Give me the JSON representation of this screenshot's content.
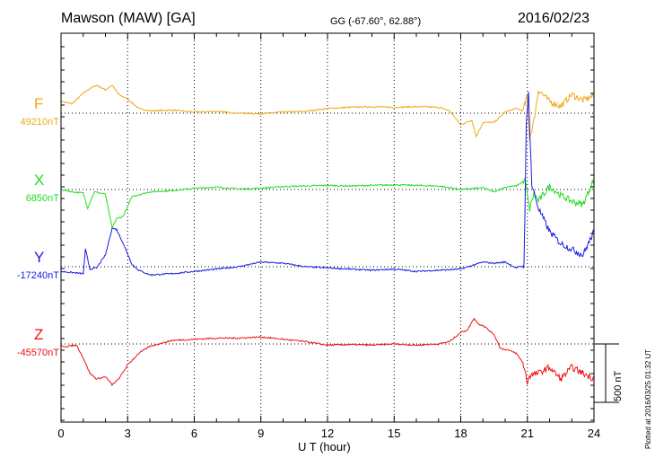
{
  "header": {
    "station": "Mawson (MAW)  [GA]",
    "coords": "GG (-67.60°,  62.88°)",
    "date": "2016/02/23"
  },
  "footer": {
    "plotted": "Plotted at 2016/03/25 01:32 UT"
  },
  "chart_data": {
    "type": "line",
    "title": "Mawson (MAW)  [GA]",
    "xlabel": "U T (hour)",
    "xlim": [
      0,
      24
    ],
    "xticks": [
      0,
      3,
      6,
      9,
      12,
      15,
      18,
      21,
      24
    ],
    "grid": true,
    "scale_bar": "500 nT",
    "scale_bar_nT": 500,
    "series": [
      {
        "name": "F",
        "baseline_label": "49210nT",
        "baseline": 49210,
        "color": "#f0a818",
        "x": [
          0,
          0.5,
          1,
          1.3,
          1.6,
          2,
          2.3,
          2.6,
          3,
          3.5,
          4,
          5,
          6,
          7,
          8,
          9,
          10,
          11,
          12,
          13,
          14,
          15,
          16,
          17,
          17.5,
          18,
          18.5,
          18.7,
          19,
          19.5,
          20,
          20.5,
          20.8,
          21,
          21.1,
          21.3,
          21.5,
          22,
          22.5,
          23,
          23.5,
          24
        ],
        "values": [
          100,
          80,
          170,
          210,
          240,
          200,
          240,
          160,
          120,
          40,
          20,
          25,
          10,
          15,
          0,
          -5,
          10,
          15,
          40,
          50,
          55,
          50,
          55,
          50,
          20,
          -100,
          -60,
          -200,
          -80,
          -80,
          10,
          40,
          20,
          150,
          -220,
          -60,
          200,
          100,
          60,
          160,
          110,
          150
        ]
      },
      {
        "name": "X",
        "baseline_label": "6850nT",
        "baseline": 6850,
        "color": "#22dd22",
        "x": [
          0,
          0.5,
          1,
          1.2,
          1.5,
          2,
          2.3,
          2.5,
          2.8,
          3.2,
          4,
          5,
          6,
          7,
          8,
          9,
          10,
          11,
          12,
          13,
          14,
          15,
          16,
          17,
          18,
          19,
          19.5,
          20,
          20.5,
          20.9,
          21,
          21.1,
          21.3,
          21.5,
          22,
          22.5,
          23,
          23.5,
          24
        ],
        "values": [
          0,
          -20,
          -30,
          -160,
          -20,
          -40,
          -330,
          -250,
          -230,
          -60,
          -20,
          -10,
          10,
          20,
          5,
          10,
          25,
          30,
          35,
          30,
          35,
          40,
          35,
          30,
          0,
          15,
          -20,
          20,
          30,
          80,
          -50,
          -170,
          -30,
          -100,
          30,
          -50,
          -100,
          -130,
          90
        ]
      },
      {
        "name": "Y",
        "baseline_label": "-17240nT",
        "baseline": -17240,
        "color": "#1a1ae6",
        "x": [
          0,
          0.5,
          1,
          1.1,
          1.3,
          1.6,
          2,
          2.3,
          2.5,
          2.8,
          3.2,
          3.5,
          4,
          5,
          6,
          7,
          8,
          9,
          10,
          11,
          12,
          13,
          14,
          15,
          16,
          17,
          18,
          19,
          19.5,
          20,
          20.5,
          20.85,
          20.95,
          21.05,
          21.2,
          21.5,
          22,
          22.5,
          23,
          23.5,
          24
        ],
        "values": [
          -40,
          -50,
          -60,
          150,
          -20,
          -10,
          100,
          330,
          320,
          200,
          20,
          -30,
          -70,
          -60,
          -40,
          -20,
          0,
          40,
          30,
          0,
          -10,
          -20,
          -30,
          -20,
          -40,
          -30,
          -20,
          40,
          30,
          40,
          -10,
          10,
          1200,
          1500,
          700,
          500,
          300,
          200,
          150,
          100,
          300
        ]
      },
      {
        "name": "Z",
        "baseline_label": "-45570nT",
        "baseline": -45570,
        "color": "#ee1111",
        "x": [
          0,
          0.3,
          0.7,
          1,
          1.3,
          1.6,
          2,
          2.3,
          2.6,
          3,
          3.5,
          4,
          5,
          6,
          7,
          8,
          9,
          10,
          11,
          12,
          13,
          14,
          15,
          16,
          17,
          17.5,
          18,
          18.3,
          18.6,
          18.8,
          19,
          19.5,
          19.8,
          20.1,
          20.5,
          20.8,
          21,
          21.1,
          21.5,
          22,
          22.5,
          23,
          23.5,
          24
        ],
        "values": [
          -20,
          -20,
          -10,
          -120,
          -250,
          -300,
          -280,
          -350,
          -300,
          -180,
          -80,
          -20,
          30,
          40,
          50,
          50,
          60,
          40,
          20,
          -10,
          -5,
          -10,
          0,
          -10,
          0,
          20,
          100,
          120,
          220,
          170,
          160,
          80,
          -40,
          -50,
          -80,
          -160,
          -330,
          -270,
          -250,
          -200,
          -300,
          -200,
          -250,
          -300
        ]
      }
    ]
  }
}
